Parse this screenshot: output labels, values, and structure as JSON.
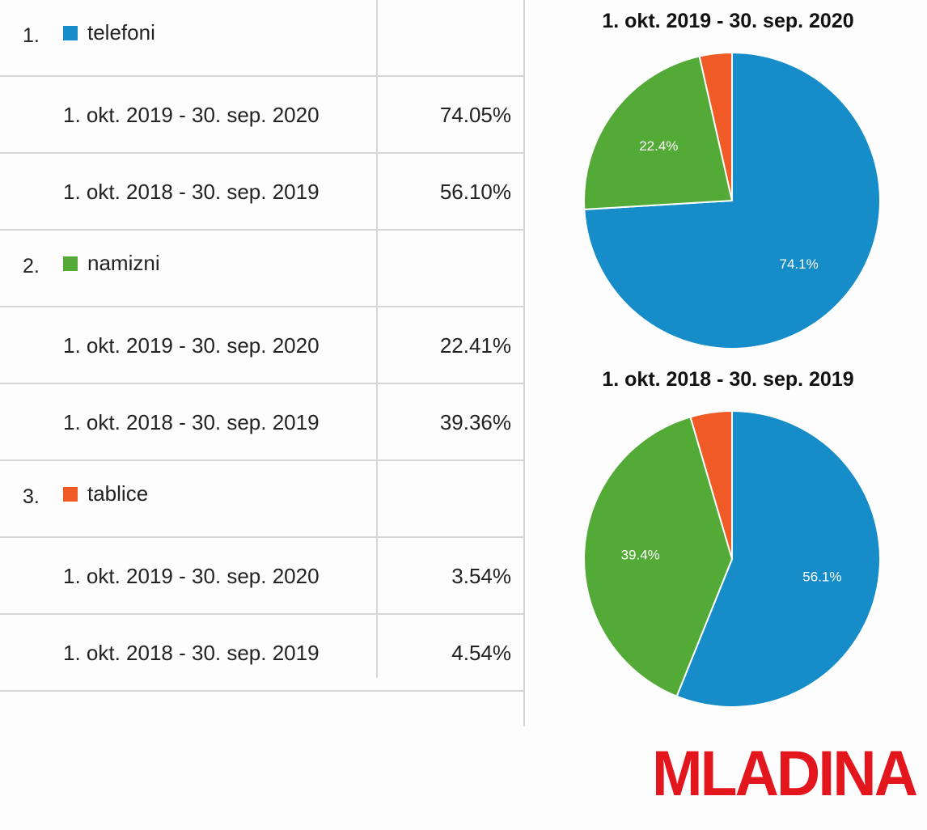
{
  "table": {
    "groups": [
      {
        "index": "1.",
        "name": "telefoni",
        "color": "#168dc9",
        "rows": [
          {
            "period": "1. okt. 2019 - 30. sep. 2020",
            "value": "74.05%"
          },
          {
            "period": "1. okt. 2018 - 30. sep. 2019",
            "value": "56.10%"
          }
        ]
      },
      {
        "index": "2.",
        "name": "namizni",
        "color": "#54aa37",
        "rows": [
          {
            "period": "1. okt. 2019 - 30. sep. 2020",
            "value": "22.41%"
          },
          {
            "period": "1. okt. 2018 - 30. sep. 2019",
            "value": "39.36%"
          }
        ]
      },
      {
        "index": "3.",
        "name": "tablice",
        "color": "#ef5a26",
        "rows": [
          {
            "period": "1. okt. 2019 - 30. sep. 2020",
            "value": "3.54%"
          },
          {
            "period": "1. okt. 2018 - 30. sep. 2019",
            "value": "4.54%"
          }
        ]
      }
    ]
  },
  "chart_data": [
    {
      "type": "pie",
      "title": "1. okt. 2019 - 30. sep. 2020",
      "categories": [
        "telefoni",
        "namizni",
        "tablice"
      ],
      "values": [
        74.05,
        22.41,
        3.54
      ],
      "data_labels": [
        "74.1%",
        "22.4%",
        ""
      ],
      "colors": [
        "#168dc9",
        "#54aa37",
        "#ef5a26"
      ]
    },
    {
      "type": "pie",
      "title": "1. okt. 2018 - 30. sep. 2019",
      "categories": [
        "telefoni",
        "namizni",
        "tablice"
      ],
      "values": [
        56.1,
        39.36,
        4.54
      ],
      "data_labels": [
        "56.1%",
        "39.4%",
        ""
      ],
      "colors": [
        "#168dc9",
        "#54aa37",
        "#ef5a26"
      ]
    }
  ],
  "logo": {
    "text": "MLADINA",
    "color": "#e3161d"
  }
}
